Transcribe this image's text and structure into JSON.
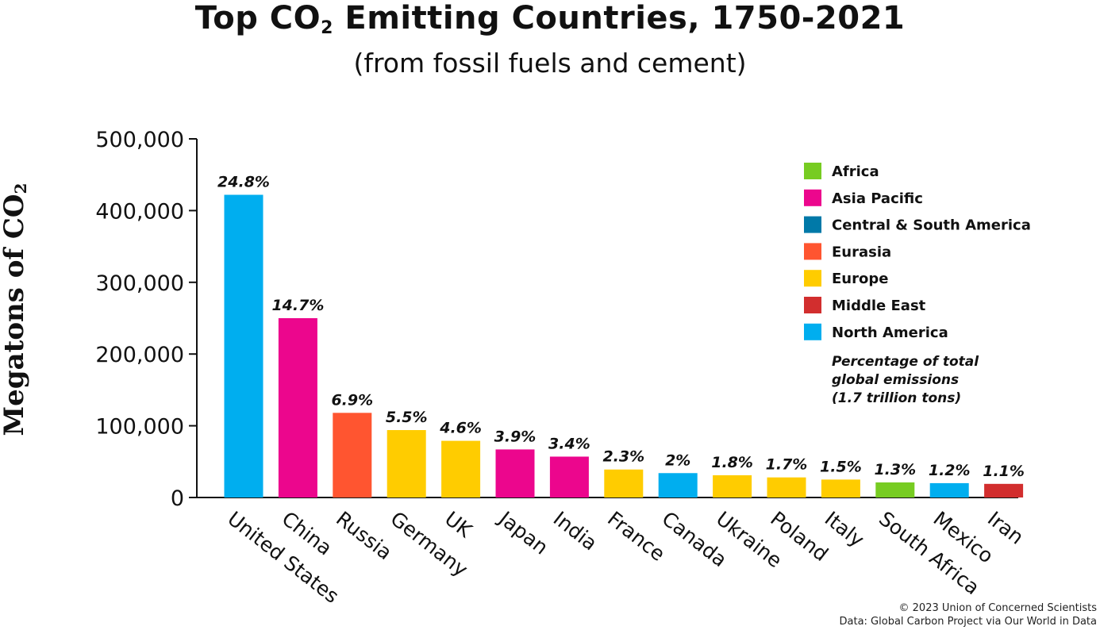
{
  "page": {
    "title_pre": "Top CO",
    "title_sub": "2",
    "title_post": " Emitting Countries, 1750-2021",
    "subtitle": "(from fossil fuels and cement)",
    "ylabel_pre": "Megatons of CO",
    "ylabel_sub": "2",
    "footer_line1": "© 2023 Union of Concerned Scientists",
    "footer_line2": "Data: Global Carbon Project via Our World in Data"
  },
  "chart_data": {
    "type": "bar",
    "title": "Top CO2 Emitting Countries, 1750-2021",
    "subtitle": "(from fossil fuels and cement)",
    "ylabel": "Megatons of CO2",
    "xlabel": "",
    "ylim": [
      0,
      500000
    ],
    "yticks": [
      0,
      100000,
      200000,
      300000,
      400000,
      500000
    ],
    "ytick_labels": [
      "0",
      "100,000",
      "200,000",
      "300,000",
      "400,000",
      "500,000"
    ],
    "grid": false,
    "categories": [
      "United States",
      "China",
      "Russia",
      "Germany",
      "UK",
      "Japan",
      "India",
      "France",
      "Canada",
      "Ukraine",
      "Poland",
      "Italy",
      "South Africa",
      "Mexico",
      "Iran"
    ],
    "values": [
      422000,
      250000,
      118000,
      94000,
      79000,
      67000,
      57000,
      39000,
      34000,
      31000,
      28000,
      25000,
      21000,
      20000,
      19000
    ],
    "labels": [
      "24.8%",
      "14.7%",
      "6.9%",
      "5.5%",
      "4.6%",
      "3.9%",
      "3.4%",
      "2.3%",
      "2%",
      "1.8%",
      "1.7%",
      "1.5%",
      "1.3%",
      "1.2%",
      "1.1%"
    ],
    "regions": [
      "North America",
      "Asia Pacific",
      "Eurasia",
      "Europe",
      "Europe",
      "Asia Pacific",
      "Asia Pacific",
      "Europe",
      "North America",
      "Europe",
      "Europe",
      "Europe",
      "Africa",
      "North America",
      "Middle East"
    ],
    "legend": [
      {
        "name": "Africa",
        "color": "#77CC22"
      },
      {
        "name": "Asia Pacific",
        "color": "#EC068D"
      },
      {
        "name": "Central & South America",
        "color": "#0079A8"
      },
      {
        "name": "Eurasia",
        "color": "#FF5530"
      },
      {
        "name": "Europe",
        "color": "#FFCC00"
      },
      {
        "name": "Middle East",
        "color": "#D22E2E"
      },
      {
        "name": "North America",
        "color": "#00AEEF"
      }
    ],
    "legend_position": "top-right",
    "legend_note": [
      "Percentage of total",
      "global emissions",
      "(1.7 trillion tons)"
    ]
  }
}
